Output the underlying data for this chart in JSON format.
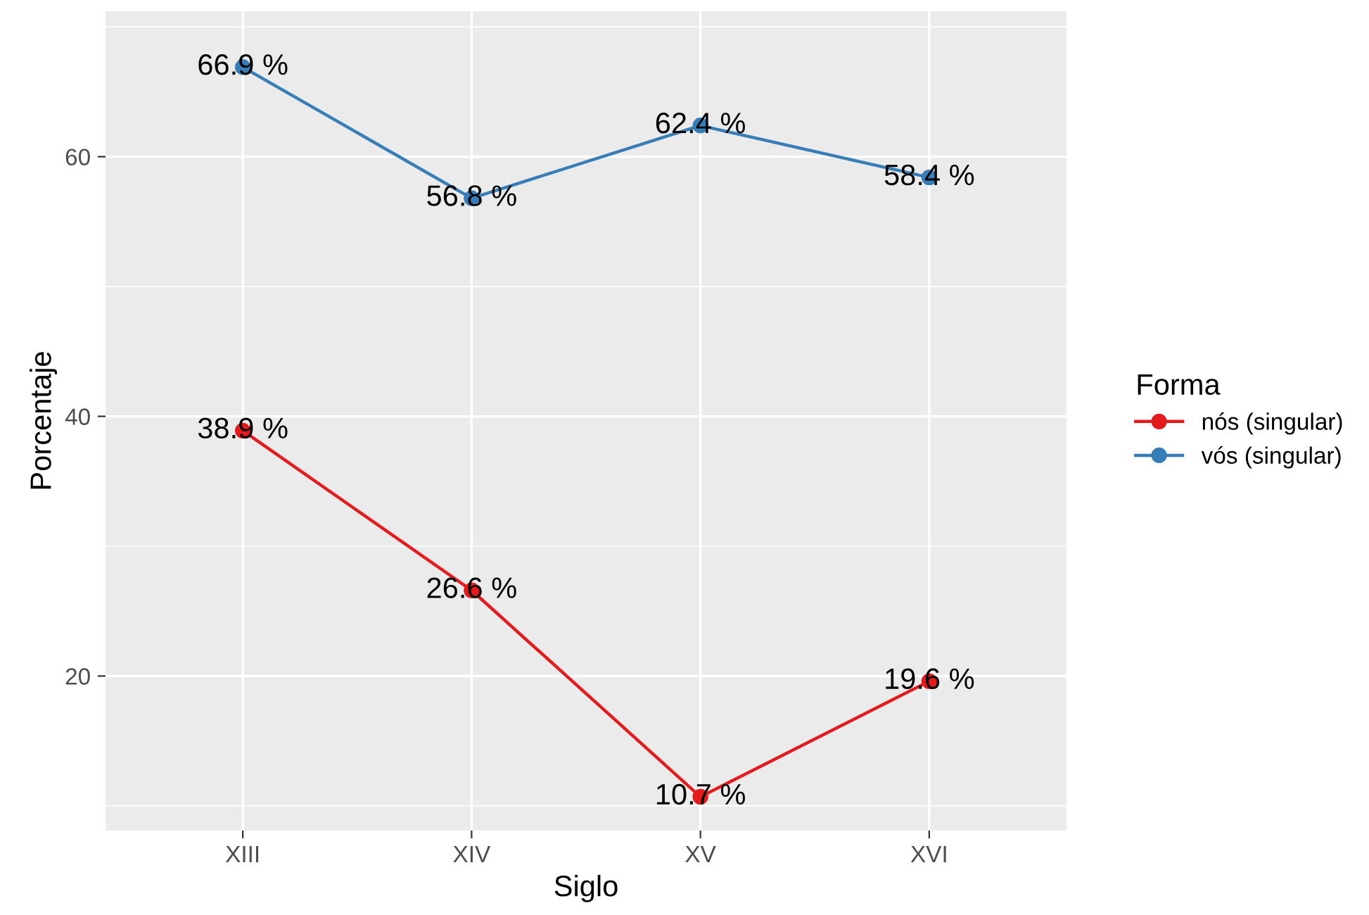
{
  "chart_data": {
    "type": "line",
    "xlabel": "Siglo",
    "ylabel": "Porcentaje",
    "legend_title": "Forma",
    "categories": [
      "XIII",
      "XIV",
      "XV",
      "XVI"
    ],
    "series": [
      {
        "name": "nós (singular)",
        "color": "#e41a1c",
        "values": [
          38.9,
          26.6,
          10.7,
          19.6
        ],
        "value_labels": [
          "38.9 %",
          "26.6 %",
          "10.7 %",
          "19.6 %"
        ]
      },
      {
        "name": "vós (singular)",
        "color": "#377eb8",
        "values": [
          66.9,
          56.8,
          62.4,
          58.4
        ],
        "value_labels": [
          "66.9 %",
          "56.8 %",
          "62.4 %",
          "58.4 %"
        ]
      }
    ],
    "ylim": [
      8.1,
      71.2
    ],
    "yticks": [
      20,
      40,
      60
    ],
    "grid": true,
    "legend": "right",
    "marker": "circle",
    "line_style": "solid"
  }
}
